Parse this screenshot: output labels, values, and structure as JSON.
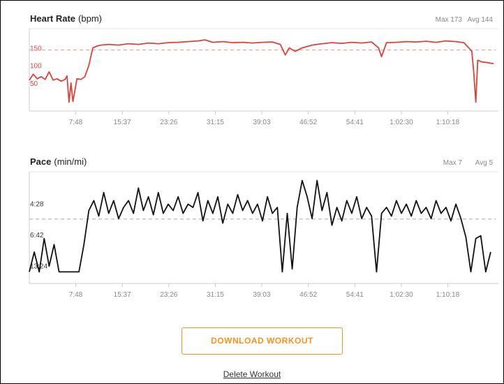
{
  "chart_data": [
    {
      "type": "line",
      "title": "Heart Rate",
      "unit": "(bpm)",
      "max_label": "Max 173",
      "avg_label": "Avg 144",
      "avg_line": 144,
      "color": "#e0413a",
      "avg_color": "#f0a3a3",
      "yscale": "linear",
      "x": [
        0,
        40,
        80,
        120,
        160,
        200,
        240,
        280,
        320,
        360,
        380,
        400,
        420,
        440,
        480,
        520,
        560,
        600,
        640,
        680,
        720,
        800,
        900,
        1000,
        1100,
        1200,
        1300,
        1400,
        1500,
        1600,
        1700,
        1770,
        1850,
        1950,
        2050,
        2150,
        2250,
        2350,
        2450,
        2530,
        2580,
        2620,
        2680,
        2750,
        2850,
        2950,
        3050,
        3150,
        3250,
        3350,
        3450,
        3520,
        3550,
        3600,
        3700,
        3800,
        3900,
        4000,
        4100,
        4200,
        4300,
        4380,
        4430,
        4460,
        4480,
        4500,
        4520,
        4560,
        4620,
        4680
      ],
      "values": [
        58,
        75,
        62,
        68,
        60,
        82,
        58,
        62,
        55,
        60,
        70,
        -5,
        50,
        -3,
        62,
        60,
        68,
        100,
        150,
        155,
        158,
        160,
        158,
        162,
        160,
        164,
        162,
        165,
        166,
        168,
        170,
        173,
        166,
        168,
        165,
        166,
        164,
        166,
        167,
        160,
        130,
        150,
        140,
        150,
        158,
        162,
        165,
        163,
        166,
        164,
        167,
        150,
        125,
        165,
        166,
        168,
        167,
        169,
        166,
        170,
        168,
        165,
        150,
        140,
        80,
        -5,
        115,
        110,
        108,
        105
      ],
      "xlim": [
        0,
        4700
      ],
      "ylim": [
        -30,
        205
      ],
      "yticks": [
        50,
        100,
        150
      ],
      "xticks": [
        {
          "value": 468,
          "label": "7:48"
        },
        {
          "value": 937,
          "label": "15:37"
        },
        {
          "value": 1406,
          "label": "23:26"
        },
        {
          "value": 1875,
          "label": "31:15"
        },
        {
          "value": 2343,
          "label": "39:03"
        },
        {
          "value": 2812,
          "label": "46:52"
        },
        {
          "value": 3281,
          "label": "54:41"
        },
        {
          "value": 3750,
          "label": "1:02:30"
        },
        {
          "value": 4218,
          "label": "1:10:18"
        }
      ]
    },
    {
      "type": "line",
      "title": "Pace",
      "unit": "(min/mi)",
      "max_label": "Max 7",
      "avg_label": "Avg 5",
      "avg_line": 322,
      "color": "#111111",
      "avg_color": "#bbbbbb",
      "yscale": "reciprocal",
      "x": [
        0,
        50,
        100,
        150,
        200,
        250,
        300,
        350,
        400,
        450,
        500,
        550,
        600,
        650,
        700,
        750,
        800,
        850,
        900,
        950,
        1000,
        1050,
        1100,
        1150,
        1200,
        1250,
        1300,
        1350,
        1400,
        1450,
        1500,
        1550,
        1600,
        1650,
        1700,
        1750,
        1800,
        1850,
        1900,
        1950,
        2000,
        2050,
        2100,
        2150,
        2200,
        2250,
        2300,
        2350,
        2400,
        2450,
        2500,
        2550,
        2600,
        2650,
        2700,
        2750,
        2800,
        2850,
        2900,
        2950,
        3000,
        3050,
        3100,
        3150,
        3200,
        3250,
        3300,
        3350,
        3400,
        3450,
        3500,
        3550,
        3600,
        3650,
        3700,
        3750,
        3800,
        3850,
        3900,
        3950,
        4000,
        4050,
        4100,
        4150,
        4200,
        4250,
        4300,
        4350,
        4400,
        4450,
        4500,
        4550,
        4600,
        4650
      ],
      "values": [
        1010,
        560,
        1010,
        430,
        820,
        480,
        1010,
        1010,
        1010,
        1010,
        1010,
        480,
        290,
        260,
        310,
        240,
        300,
        260,
        320,
        280,
        260,
        300,
        230,
        290,
        250,
        305,
        240,
        300,
        270,
        290,
        250,
        300,
        270,
        280,
        240,
        330,
        260,
        300,
        250,
        340,
        270,
        300,
        245,
        290,
        260,
        300,
        270,
        330,
        250,
        300,
        280,
        1010,
        300,
        900,
        280,
        215,
        250,
        320,
        215,
        290,
        240,
        350,
        280,
        330,
        260,
        300,
        250,
        320,
        280,
        310,
        1010,
        300,
        280,
        310,
        260,
        300,
        270,
        310,
        260,
        300,
        280,
        320,
        260,
        300,
        280,
        330,
        270,
        320,
        420,
        1010,
        430,
        410,
        1010,
        560
      ],
      "xlim": [
        0,
        4700
      ],
      "ylim": [
        1900,
        200
      ],
      "yticks": [
        {
          "value": 268,
          "label": "4:28"
        },
        {
          "value": 402,
          "label": "6:42"
        },
        {
          "value": 804,
          "label": "13:24"
        }
      ],
      "xticks": [
        {
          "value": 468,
          "label": "7:48"
        },
        {
          "value": 937,
          "label": "15:37"
        },
        {
          "value": 1406,
          "label": "23:26"
        },
        {
          "value": 1875,
          "label": "31:15"
        },
        {
          "value": 2343,
          "label": "39:03"
        },
        {
          "value": 2812,
          "label": "46:52"
        },
        {
          "value": 3281,
          "label": "54:41"
        },
        {
          "value": 3750,
          "label": "1:02:30"
        },
        {
          "value": 4218,
          "label": "1:10:18"
        }
      ]
    }
  ],
  "download_button": "DOWNLOAD WORKOUT",
  "delete_link": "Delete Workout"
}
